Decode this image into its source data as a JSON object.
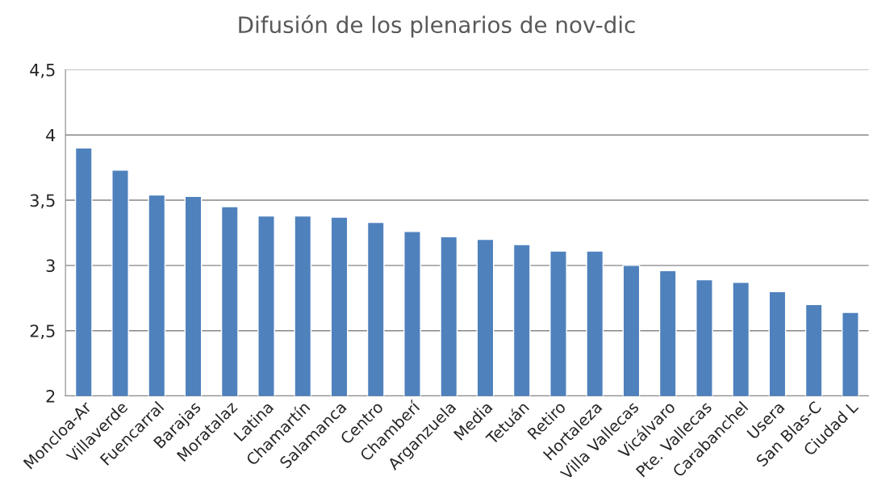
{
  "chart_data": {
    "type": "bar",
    "title": "Difusión de los plenarios de nov-dic",
    "categories": [
      "Moncloa-Ar",
      "Villaverde",
      "Fuencarral",
      "Barajas",
      "Moratalaz",
      "Latina",
      "Chamartín",
      "Salamanca",
      "Centro",
      "Chamberí",
      "Arganzuela",
      "Media",
      "Tetuán",
      "Retiro",
      "Hortaleza",
      "Villa Vallecas",
      "Vicálvaro",
      "Pte. Vallecas",
      "Carabanchel",
      "Usera",
      "San Blas-C",
      "Ciudad L"
    ],
    "values": [
      3.9,
      3.73,
      3.54,
      3.53,
      3.45,
      3.38,
      3.38,
      3.37,
      3.33,
      3.26,
      3.22,
      3.2,
      3.16,
      3.11,
      3.11,
      3.0,
      2.96,
      2.89,
      2.87,
      2.8,
      2.7,
      2.64
    ],
    "color": "#4f81bd",
    "ylim": [
      2,
      4.5
    ],
    "yticks": [
      2,
      {
        "value": 2.5,
        "label": "2,5"
      },
      3,
      {
        "value": 3.5,
        "label": "3,5"
      },
      4,
      {
        "value": 4.5,
        "label": "4,5"
      }
    ],
    "grid": "y",
    "legend": false
  }
}
